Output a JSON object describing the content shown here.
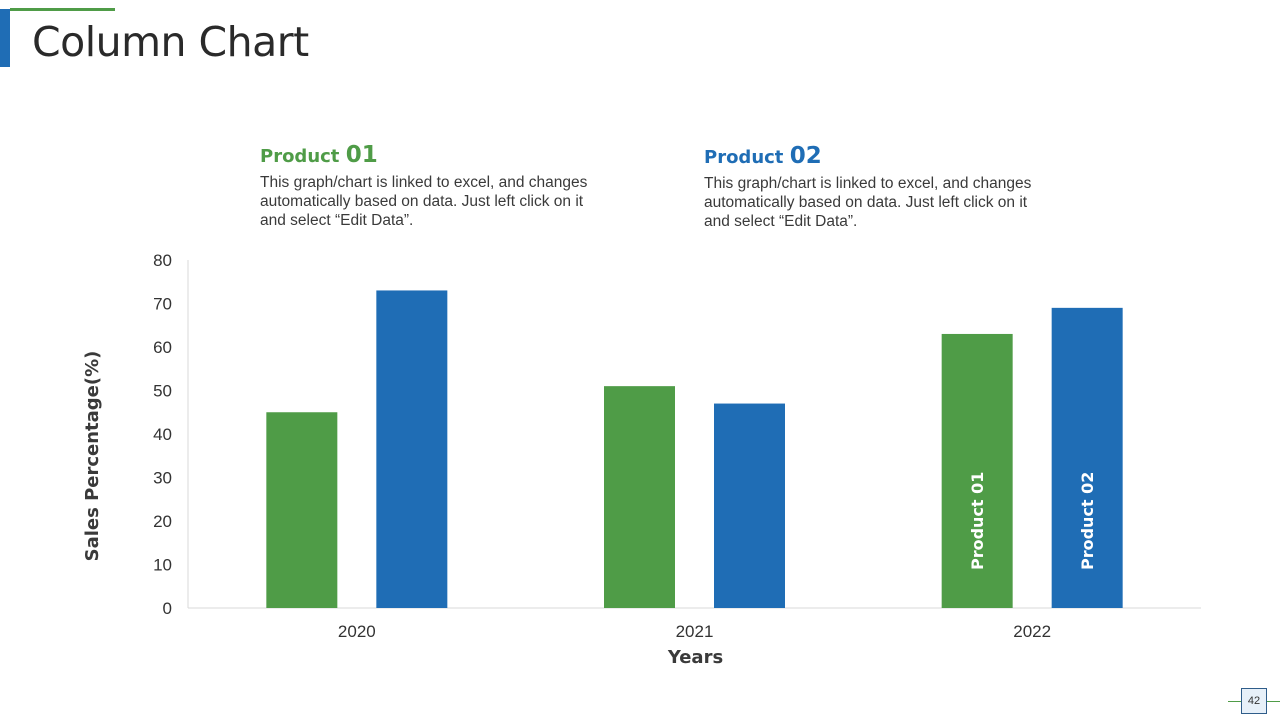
{
  "page": {
    "title": "Column Chart",
    "page_number": "42"
  },
  "legend_blocks": [
    {
      "label": "Product",
      "number": "01",
      "color": "#4f9c47",
      "text": "This graph/chart is linked to excel, and changes automatically based on data. Just left click on it and select “Edit Data”."
    },
    {
      "label": "Product",
      "number": "02",
      "color": "#1f6db5",
      "text": "This graph/chart is linked to excel, and changes automatically based on data. Just left click on it and select “Edit Data”."
    }
  ],
  "chart_data": {
    "type": "bar",
    "title": "",
    "xlabel": "Years",
    "ylabel": "Sales Percentage(%)",
    "categories": [
      "2020",
      "2021",
      "2022"
    ],
    "ylim": [
      0,
      80
    ],
    "yticks": [
      0,
      10,
      20,
      30,
      40,
      50,
      60,
      70,
      80
    ],
    "grid": false,
    "series": [
      {
        "name": "Product 01",
        "color": "#4f9c47",
        "values": [
          45,
          51,
          63
        ]
      },
      {
        "name": "Product 02",
        "color": "#1f6db5",
        "values": [
          73,
          47,
          69
        ]
      }
    ],
    "in_bar_labels": {
      "category": "2022",
      "labels": [
        "Product 01",
        "Product 02"
      ]
    }
  }
}
